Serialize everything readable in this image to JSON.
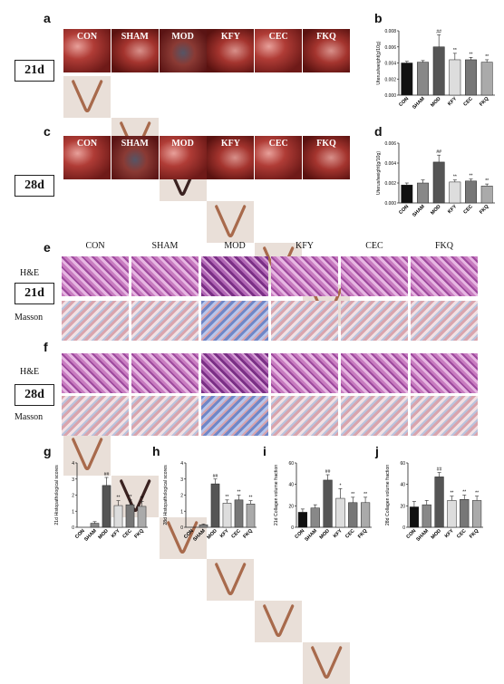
{
  "panels": {
    "a": "a",
    "b": "b",
    "c": "c",
    "d": "d",
    "e": "e",
    "f": "f",
    "g": "g",
    "h": "h",
    "i": "i",
    "j": "j"
  },
  "days": {
    "d21": "21d",
    "d28": "28d"
  },
  "groups": [
    "CON",
    "SHAM",
    "MOD",
    "KFY",
    "CEC",
    "FKQ"
  ],
  "stains": {
    "he": "H&E",
    "masson": "Masson"
  },
  "chart_data": [
    {
      "id": "b",
      "type": "bar",
      "ylabel": "Uterus/weight(g/10g)",
      "categories": [
        "CON",
        "SHAM",
        "MOD",
        "KFY",
        "CEC",
        "FKQ"
      ],
      "values": [
        0.004,
        0.0041,
        0.006,
        0.0044,
        0.0044,
        0.0041
      ],
      "errors": [
        0.0002,
        0.0002,
        0.0015,
        0.0008,
        0.0003,
        0.0003
      ],
      "annotations": [
        "",
        "",
        "##",
        "**",
        "**",
        "**"
      ],
      "ylim": [
        0,
        0.008
      ],
      "yticks": [
        "0.000",
        "0.002",
        "0.004",
        "0.006",
        "0.008"
      ],
      "colors": [
        "#111111",
        "#888888",
        "#555555",
        "#dddddd",
        "#777777",
        "#aaaaaa"
      ]
    },
    {
      "id": "d",
      "type": "bar",
      "ylabel": "Uterus/weight(g/10g)",
      "categories": [
        "CON",
        "SHAM",
        "MOD",
        "KFY",
        "CEC",
        "FKQ"
      ],
      "values": [
        0.0018,
        0.002,
        0.0041,
        0.0021,
        0.0022,
        0.0017
      ],
      "errors": [
        0.0002,
        0.0003,
        0.0007,
        0.0002,
        0.0002,
        0.0002
      ],
      "annotations": [
        "",
        "",
        "##",
        "**",
        "**",
        "**"
      ],
      "ylim": [
        0,
        0.006
      ],
      "yticks": [
        "0.000",
        "0.002",
        "0.004",
        "0.006"
      ],
      "colors": [
        "#111111",
        "#888888",
        "#555555",
        "#dddddd",
        "#777777",
        "#aaaaaa"
      ]
    },
    {
      "id": "g",
      "type": "bar",
      "ylabel": "21d Histopathological scores",
      "categories": [
        "CON",
        "SHAM",
        "MOD",
        "KFY",
        "CEC",
        "FKQ"
      ],
      "values": [
        0,
        0.25,
        2.6,
        1.35,
        1.4,
        1.3
      ],
      "errors": [
        0,
        0.1,
        0.5,
        0.3,
        0.3,
        0.3
      ],
      "annotations": [
        "",
        "",
        "##",
        "**",
        "**",
        "**"
      ],
      "ylim": [
        0,
        4
      ],
      "yticks": [
        "0",
        "1",
        "2",
        "3",
        "4"
      ],
      "colors": [
        "#111111",
        "#888888",
        "#555555",
        "#dddddd",
        "#777777",
        "#aaaaaa"
      ]
    },
    {
      "id": "h",
      "type": "bar",
      "ylabel": "28d Histopathological scores",
      "categories": [
        "CON",
        "SHAM",
        "MOD",
        "KFY",
        "CEC",
        "FKQ"
      ],
      "values": [
        0,
        0.15,
        2.7,
        1.5,
        1.7,
        1.45
      ],
      "errors": [
        0,
        0.05,
        0.3,
        0.2,
        0.3,
        0.2
      ],
      "annotations": [
        "",
        "",
        "##",
        "**",
        "**",
        "**"
      ],
      "ylim": [
        0,
        4
      ],
      "yticks": [
        "0",
        "1",
        "2",
        "3",
        "4"
      ],
      "colors": [
        "#111111",
        "#888888",
        "#555555",
        "#dddddd",
        "#777777",
        "#aaaaaa"
      ]
    },
    {
      "id": "i",
      "type": "bar",
      "ylabel": "21d Collagen volume fraction",
      "categories": [
        "CON",
        "SHAM",
        "MOD",
        "KFY",
        "CEC",
        "FKQ"
      ],
      "values": [
        14,
        18,
        44,
        27,
        23,
        23
      ],
      "errors": [
        3,
        3,
        5,
        9,
        5,
        5
      ],
      "annotations": [
        "",
        "",
        "##",
        "*",
        "**",
        "**"
      ],
      "ylim": [
        0,
        60
      ],
      "yticks": [
        "0",
        "20",
        "40",
        "60"
      ],
      "colors": [
        "#111111",
        "#888888",
        "#555555",
        "#dddddd",
        "#777777",
        "#aaaaaa"
      ]
    },
    {
      "id": "j",
      "type": "bar",
      "ylabel": "28d Collagen volume fraction",
      "categories": [
        "CON",
        "SHAM",
        "MOD",
        "KFY",
        "CEC",
        "FKQ"
      ],
      "values": [
        19,
        21,
        47,
        25,
        26,
        25
      ],
      "errors": [
        5,
        4,
        4,
        4,
        4,
        4
      ],
      "annotations": [
        "",
        "",
        "##",
        "**",
        "**",
        "**"
      ],
      "ylim": [
        0,
        60
      ],
      "yticks": [
        "0",
        "20",
        "40",
        "60"
      ],
      "colors": [
        "#111111",
        "#888888",
        "#555555",
        "#dddddd",
        "#777777",
        "#aaaaaa"
      ]
    }
  ]
}
